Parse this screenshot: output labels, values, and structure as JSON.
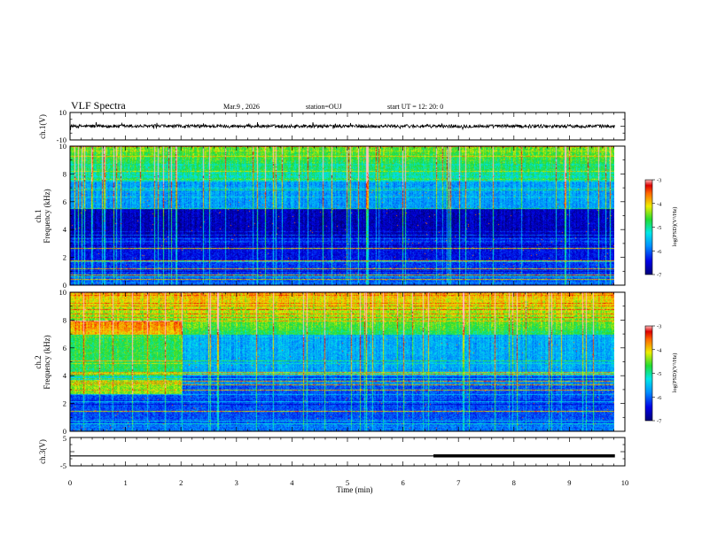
{
  "header": {
    "title": "VLF Spectra",
    "date": "Mar.9 , 2026",
    "station": "station=OUJ",
    "start": "start UT = 12: 20: 0"
  },
  "chart_data": [
    {
      "type": "line",
      "name": "ch1-waveform",
      "ylabel": "ch.1(V)",
      "ylim": [
        -10,
        10
      ],
      "yticks": [
        "10",
        "-10"
      ],
      "xlim": [
        0,
        10
      ],
      "data_extent_min": 9.82,
      "baseline": 0,
      "noise_amplitude": 1.2
    },
    {
      "type": "heatmap",
      "name": "ch1-spectrogram",
      "ylabel": "ch.1",
      "ylabel2": "Frequency (kHz)",
      "ylim": [
        0,
        10
      ],
      "yticks": [
        "0",
        "2",
        "4",
        "6",
        "8",
        "10"
      ],
      "xlim": [
        0,
        10
      ],
      "data_extent_min": 9.82,
      "colorbar": {
        "label": "log(PSD)(V²/Hz)",
        "ticks": [
          "-3",
          "-4",
          "-5",
          "-6",
          "-7"
        ],
        "range": [
          -7,
          -3
        ]
      }
    },
    {
      "type": "heatmap",
      "name": "ch2-spectrogram",
      "ylabel": "ch.2",
      "ylabel2": "Frequency (kHz)",
      "ylim": [
        0,
        10
      ],
      "yticks": [
        "0",
        "2",
        "4",
        "6",
        "8",
        "10"
      ],
      "xlim": [
        0,
        10
      ],
      "data_extent_min": 9.82,
      "colorbar": {
        "label": "log(PSD)(V²/Hz)",
        "ticks": [
          "-3",
          "-4",
          "-5",
          "-6",
          "-7"
        ],
        "range": [
          -7,
          -3
        ]
      }
    },
    {
      "type": "line",
      "name": "ch3-signal",
      "ylabel": "ch.3(V)",
      "ylim": [
        -5,
        5
      ],
      "yticks": [
        "5",
        "-5"
      ],
      "xlim": [
        0,
        10
      ],
      "level": -1.5,
      "thick_from_min": 6.55,
      "data_extent_min": 9.82
    }
  ],
  "xaxis": {
    "label": "Time (min)",
    "ticks": [
      "0",
      "1",
      "2",
      "3",
      "4",
      "5",
      "6",
      "7",
      "8",
      "9",
      "10"
    ]
  }
}
